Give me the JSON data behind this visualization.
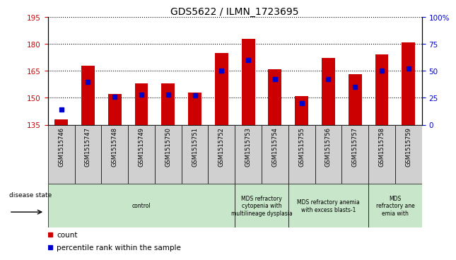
{
  "title": "GDS5622 / ILMN_1723695",
  "samples": [
    "GSM1515746",
    "GSM1515747",
    "GSM1515748",
    "GSM1515749",
    "GSM1515750",
    "GSM1515751",
    "GSM1515752",
    "GSM1515753",
    "GSM1515754",
    "GSM1515755",
    "GSM1515756",
    "GSM1515757",
    "GSM1515758",
    "GSM1515759"
  ],
  "counts": [
    138,
    168,
    152,
    158,
    158,
    153,
    175,
    183,
    166,
    151,
    172,
    163,
    174,
    181
  ],
  "percentile_ranks": [
    14,
    40,
    26,
    28,
    28,
    27,
    50,
    60,
    42,
    20,
    42,
    35,
    50,
    52
  ],
  "ylim_left": [
    135,
    195
  ],
  "ylim_right": [
    0,
    100
  ],
  "yticks_left": [
    135,
    150,
    165,
    180,
    195
  ],
  "yticks_right": [
    0,
    25,
    50,
    75,
    100
  ],
  "bar_color": "#cc0000",
  "marker_color": "#0000cc",
  "bar_bottom": 135,
  "disease_groups": [
    {
      "label": "control",
      "start": 0,
      "end": 7,
      "color": "#c8e6c9"
    },
    {
      "label": "MDS refractory\ncytopenia with\nmultilineage dysplasia",
      "start": 7,
      "end": 9,
      "color": "#c8e6c9"
    },
    {
      "label": "MDS refractory anemia\nwith excess blasts-1",
      "start": 9,
      "end": 12,
      "color": "#c8e6c9"
    },
    {
      "label": "MDS\nrefractory ane\nemia with",
      "start": 12,
      "end": 14,
      "color": "#c8e6c9"
    }
  ],
  "legend_count_label": "count",
  "legend_pct_label": "percentile rank within the sample",
  "disease_state_label": "disease state",
  "background_color": "#ffffff",
  "plot_bg_color": "#ffffff",
  "tick_label_color_left": "#cc0000",
  "tick_label_color_right": "#0000cc",
  "title_fontsize": 10,
  "tick_fontsize": 7.5,
  "bar_width": 0.5,
  "sample_box_color": "#d0d0d0"
}
